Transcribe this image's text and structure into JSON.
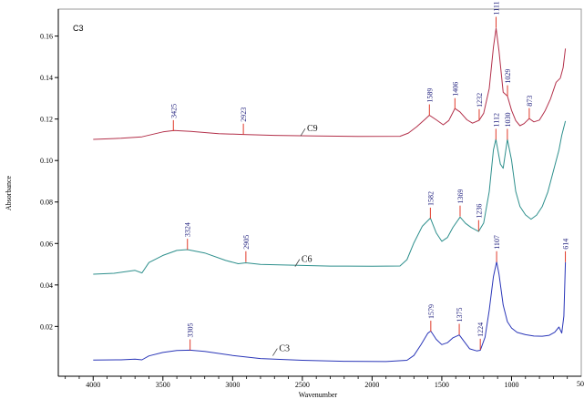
{
  "chart_data": {
    "type": "line",
    "corner_label": "C3",
    "ylabel": "Absorbance",
    "xlabel": "Wavenumber",
    "x_reversed": true,
    "xlim": [
      4250,
      500
    ],
    "ylim": [
      -0.004,
      0.173
    ],
    "x_ticks": [
      4000,
      3500,
      3000,
      2500,
      2000,
      1500,
      1000
    ],
    "x_tick_labels": [
      "4000",
      "3500",
      "3000",
      "2500",
      "2000",
      "1500",
      "1000"
    ],
    "x_edge_label": "50",
    "y_ticks": [
      0.02,
      0.04,
      0.06,
      0.08,
      0.1,
      0.12,
      0.14,
      0.16
    ],
    "y_tick_labels": [
      "0.02",
      "0.04",
      "0.06",
      "0.08",
      "0.10",
      "0.12",
      "0.14",
      "0.16"
    ],
    "colors": {
      "plot_border": "#9a9a9a",
      "peak_marker": "#e03a2a",
      "axis": "#000000",
      "corner_label": "#7a3fa0"
    },
    "series": [
      {
        "name": "C9",
        "color": "#b3304a",
        "label_at": [
          2460,
          0.1145
        ],
        "points": [
          [
            4000,
            0.1102
          ],
          [
            3800,
            0.1106
          ],
          [
            3650,
            0.1112
          ],
          [
            3500,
            0.1135
          ],
          [
            3420,
            0.1142
          ],
          [
            3300,
            0.1138
          ],
          [
            3100,
            0.1128
          ],
          [
            2923,
            0.1125
          ],
          [
            2700,
            0.1122
          ],
          [
            2400,
            0.112
          ],
          [
            2100,
            0.1119
          ],
          [
            1800,
            0.112
          ],
          [
            1740,
            0.1135
          ],
          [
            1680,
            0.1165
          ],
          [
            1620,
            0.12
          ],
          [
            1589,
            0.1218
          ],
          [
            1540,
            0.1195
          ],
          [
            1490,
            0.117
          ],
          [
            1450,
            0.119
          ],
          [
            1406,
            0.1248
          ],
          [
            1370,
            0.1232
          ],
          [
            1320,
            0.1195
          ],
          [
            1280,
            0.118
          ],
          [
            1232,
            0.1195
          ],
          [
            1200,
            0.123
          ],
          [
            1160,
            0.135
          ],
          [
            1130,
            0.155
          ],
          [
            1111,
            0.164
          ],
          [
            1090,
            0.153
          ],
          [
            1060,
            0.133
          ],
          [
            1029,
            0.131
          ],
          [
            1000,
            0.124
          ],
          [
            970,
            0.119
          ],
          [
            940,
            0.1165
          ],
          [
            910,
            0.1175
          ],
          [
            873,
            0.12
          ],
          [
            840,
            0.1185
          ],
          [
            800,
            0.1195
          ],
          [
            760,
            0.124
          ],
          [
            720,
            0.13
          ],
          [
            680,
            0.138
          ],
          [
            650,
            0.14
          ],
          [
            630,
            0.145
          ],
          [
            614,
            0.154
          ]
        ],
        "peaks": [
          {
            "label": "3425",
            "x": 3425,
            "y": 0.1142
          },
          {
            "label": "2923",
            "x": 2923,
            "y": 0.1125
          },
          {
            "label": "1589",
            "x": 1589,
            "y": 0.1218
          },
          {
            "label": "1406",
            "x": 1406,
            "y": 0.1248
          },
          {
            "label": "1232",
            "x": 1232,
            "y": 0.1195
          },
          {
            "label": "1111",
            "x": 1111,
            "y": 0.164
          },
          {
            "label": "1029",
            "x": 1029,
            "y": 0.131
          },
          {
            "label": "873",
            "x": 873,
            "y": 0.12
          }
        ]
      },
      {
        "name": "C6",
        "color": "#2d8f8c",
        "label_at": [
          2500,
          0.0515
        ],
        "points": [
          [
            4000,
            0.0452
          ],
          [
            3850,
            0.0455
          ],
          [
            3700,
            0.0468
          ],
          [
            3650,
            0.0455
          ],
          [
            3600,
            0.0505
          ],
          [
            3500,
            0.054
          ],
          [
            3400,
            0.0565
          ],
          [
            3324,
            0.057
          ],
          [
            3200,
            0.0555
          ],
          [
            3050,
            0.052
          ],
          [
            2960,
            0.0505
          ],
          [
            2905,
            0.051
          ],
          [
            2800,
            0.0502
          ],
          [
            2600,
            0.0498
          ],
          [
            2300,
            0.0492
          ],
          [
            2000,
            0.049
          ],
          [
            1800,
            0.049
          ],
          [
            1750,
            0.052
          ],
          [
            1700,
            0.06
          ],
          [
            1640,
            0.068
          ],
          [
            1582,
            0.072
          ],
          [
            1540,
            0.065
          ],
          [
            1500,
            0.061
          ],
          [
            1460,
            0.063
          ],
          [
            1420,
            0.068
          ],
          [
            1369,
            0.073
          ],
          [
            1330,
            0.07
          ],
          [
            1290,
            0.068
          ],
          [
            1236,
            0.066
          ],
          [
            1200,
            0.07
          ],
          [
            1160,
            0.085
          ],
          [
            1130,
            0.105
          ],
          [
            1112,
            0.11
          ],
          [
            1080,
            0.098
          ],
          [
            1060,
            0.096
          ],
          [
            1030,
            0.11
          ],
          [
            1000,
            0.1
          ],
          [
            970,
            0.085
          ],
          [
            940,
            0.078
          ],
          [
            900,
            0.074
          ],
          [
            860,
            0.072
          ],
          [
            820,
            0.074
          ],
          [
            780,
            0.078
          ],
          [
            740,
            0.085
          ],
          [
            700,
            0.095
          ],
          [
            660,
            0.105
          ],
          [
            640,
            0.112
          ],
          [
            614,
            0.119
          ]
        ],
        "peaks": [
          {
            "label": "3324",
            "x": 3324,
            "y": 0.057
          },
          {
            "label": "2905",
            "x": 2905,
            "y": 0.051
          },
          {
            "label": "1582",
            "x": 1582,
            "y": 0.072
          },
          {
            "label": "1369",
            "x": 1369,
            "y": 0.073
          },
          {
            "label": "1236",
            "x": 1236,
            "y": 0.066
          },
          {
            "label": "1112",
            "x": 1112,
            "y": 0.11
          },
          {
            "label": "1030",
            "x": 1030,
            "y": 0.11
          }
        ]
      },
      {
        "name": "C3",
        "color": "#2a36b8",
        "label_at": [
          2660,
          0.0085
        ],
        "points": [
          [
            4000,
            0.0038
          ],
          [
            3800,
            0.0038
          ],
          [
            3700,
            0.004
          ],
          [
            3650,
            0.0036
          ],
          [
            3600,
            0.0055
          ],
          [
            3500,
            0.0072
          ],
          [
            3400,
            0.0082
          ],
          [
            3305,
            0.0085
          ],
          [
            3200,
            0.008
          ],
          [
            3000,
            0.0062
          ],
          [
            2800,
            0.0048
          ],
          [
            2500,
            0.004
          ],
          [
            2200,
            0.0035
          ],
          [
            1900,
            0.0033
          ],
          [
            1750,
            0.0038
          ],
          [
            1700,
            0.006
          ],
          [
            1650,
            0.011
          ],
          [
            1600,
            0.0165
          ],
          [
            1579,
            0.0175
          ],
          [
            1540,
            0.0135
          ],
          [
            1500,
            0.011
          ],
          [
            1460,
            0.012
          ],
          [
            1420,
            0.0145
          ],
          [
            1375,
            0.016
          ],
          [
            1340,
            0.013
          ],
          [
            1300,
            0.0095
          ],
          [
            1250,
            0.0085
          ],
          [
            1224,
            0.0088
          ],
          [
            1190,
            0.015
          ],
          [
            1160,
            0.028
          ],
          [
            1130,
            0.044
          ],
          [
            1107,
            0.051
          ],
          [
            1090,
            0.045
          ],
          [
            1060,
            0.03
          ],
          [
            1030,
            0.022
          ],
          [
            1000,
            0.019
          ],
          [
            960,
            0.017
          ],
          [
            900,
            0.016
          ],
          [
            840,
            0.0155
          ],
          [
            780,
            0.0155
          ],
          [
            730,
            0.016
          ],
          [
            690,
            0.0175
          ],
          [
            660,
            0.02
          ],
          [
            640,
            0.017
          ],
          [
            625,
            0.025
          ],
          [
            614,
            0.051
          ]
        ],
        "peaks": [
          {
            "label": "3305",
            "x": 3305,
            "y": 0.0085
          },
          {
            "label": "1579",
            "x": 1579,
            "y": 0.0175
          },
          {
            "label": "1375",
            "x": 1375,
            "y": 0.016
          },
          {
            "label": "1224",
            "x": 1224,
            "y": 0.0088
          },
          {
            "label": "1107",
            "x": 1107,
            "y": 0.051
          },
          {
            "label": "614",
            "x": 614,
            "y": 0.051
          }
        ]
      }
    ]
  }
}
